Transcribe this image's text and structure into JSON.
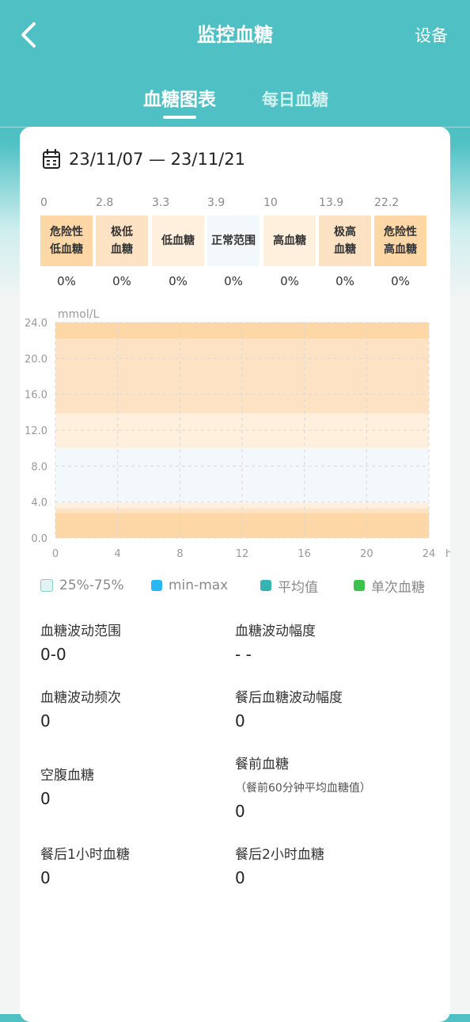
{
  "header": {
    "title": "监控血糖",
    "device_label": "设备",
    "back_icon": "chevron-left-icon"
  },
  "tabs": [
    {
      "label": "血糖图表",
      "active": true
    },
    {
      "label": "每日血糖",
      "active": false
    }
  ],
  "date_range": {
    "text": "23/11/07 — 23/11/21",
    "icon": "calendar-icon"
  },
  "ranges": {
    "thresholds": [
      "0",
      "2.8",
      "3.3",
      "3.9",
      "10",
      "13.9",
      "22.2"
    ],
    "categories": [
      {
        "line1": "危险性",
        "line2": "低血糖",
        "pct": "0%",
        "color": "#fdd8a6"
      },
      {
        "line1": "极低",
        "line2": "血糖",
        "pct": "0%",
        "color": "#fde3c4"
      },
      {
        "line1": "低血糖",
        "line2": "",
        "pct": "0%",
        "color": "#fff0de"
      },
      {
        "line1": "正常范围",
        "line2": "",
        "pct": "0%",
        "color": "#f3f8fc"
      },
      {
        "line1": "高血糖",
        "line2": "",
        "pct": "0%",
        "color": "#fff0de"
      },
      {
        "line1": "极高",
        "line2": "血糖",
        "pct": "0%",
        "color": "#fde3c4"
      },
      {
        "line1": "危险性",
        "line2": "高血糖",
        "pct": "0%",
        "color": "#fdd8a6"
      }
    ]
  },
  "chart_data": {
    "type": "area",
    "ylabel": "mmol/L",
    "xlabel": "h",
    "x_ticks": [
      "0",
      "4",
      "8",
      "12",
      "16",
      "20",
      "24"
    ],
    "y_ticks": [
      "0.0",
      "4.0",
      "8.0",
      "12.0",
      "16.0",
      "20.0",
      "24.0"
    ],
    "xlim": [
      0,
      24
    ],
    "ylim": [
      0,
      24
    ],
    "bands": [
      {
        "from": 0,
        "to": 2.8,
        "color": "#fdd8a6"
      },
      {
        "from": 2.8,
        "to": 3.3,
        "color": "#fde3c4"
      },
      {
        "from": 3.3,
        "to": 3.9,
        "color": "#fff0de"
      },
      {
        "from": 3.9,
        "to": 10,
        "color": "#f3f8fc"
      },
      {
        "from": 10,
        "to": 13.9,
        "color": "#fff0de"
      },
      {
        "from": 13.9,
        "to": 22.2,
        "color": "#fde3c4"
      },
      {
        "from": 22.2,
        "to": 24,
        "color": "#fdd8a6"
      }
    ],
    "series": []
  },
  "legend": [
    {
      "label": "25%-75%",
      "color": "#dff4f3",
      "border": "#7fd0cc"
    },
    {
      "label": "min-max",
      "color": "#29b6f2",
      "border": "#29b6f2"
    },
    {
      "label": "平均值",
      "color": "#36b3b3",
      "border": "#36b3b3"
    },
    {
      "label": "单次血糖",
      "color": "#3cc24c",
      "border": "#3cc24c"
    }
  ],
  "stats": {
    "range_label": "血糖波动范围",
    "range_value": "0-0",
    "amplitude_label": "血糖波动幅度",
    "amplitude_value": "- -",
    "frequency_label": "血糖波动频次",
    "frequency_value": "0",
    "post_meal_amp_label": "餐后血糖波动幅度",
    "post_meal_amp_value": "0",
    "fasting_label": "空腹血糖",
    "fasting_value": "0",
    "pre_meal_label": "餐前血糖",
    "pre_meal_sub": "（餐前60分钟平均血糖值）",
    "pre_meal_value": "0",
    "post1h_label": "餐后1小时血糖",
    "post1h_value": "0",
    "post2h_label": "餐后2小时血糖",
    "post2h_value": "0"
  }
}
